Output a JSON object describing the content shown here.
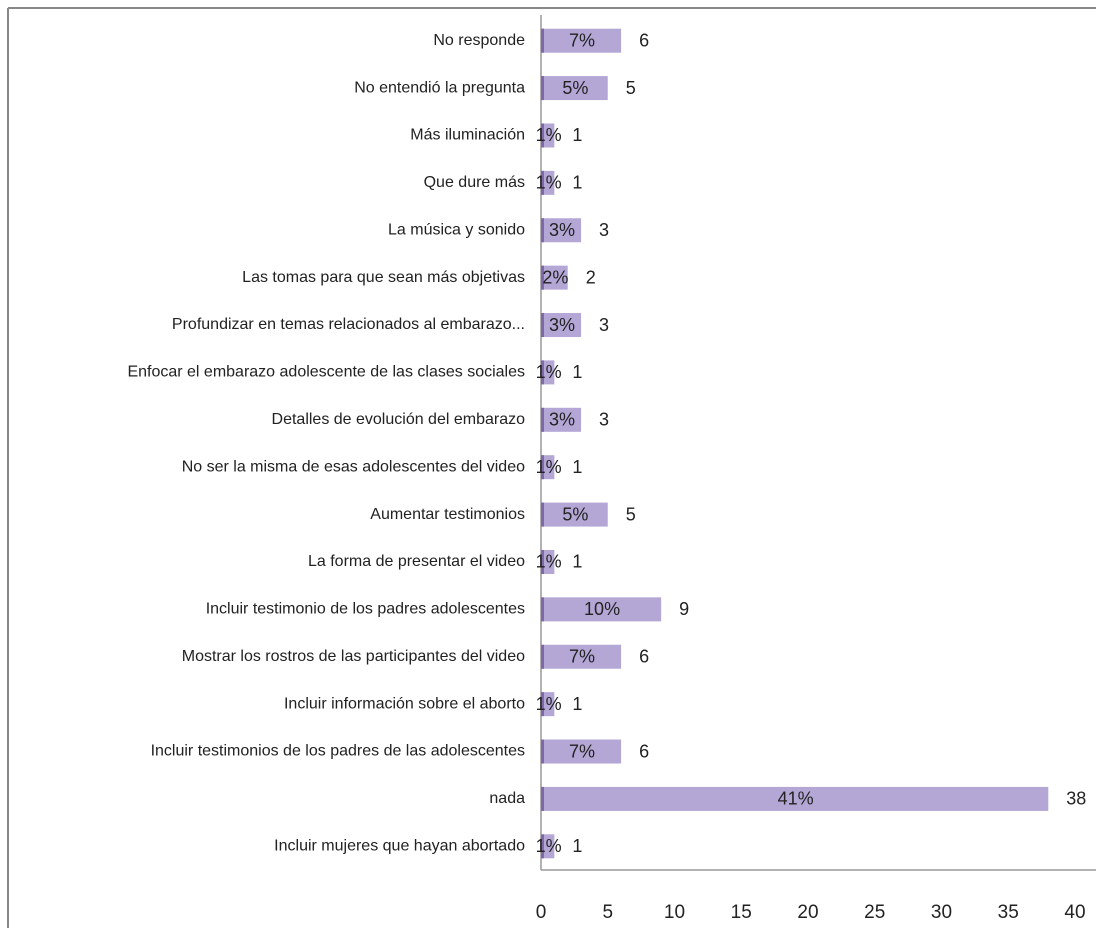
{
  "chart_data": {
    "type": "bar",
    "orientation": "horizontal",
    "categories": [
      "No responde",
      "No entendió la pregunta",
      "Más iluminación",
      "Que dure más",
      "La música y sonido",
      "Las tomas para que sean más objetivas",
      "Profundizar en temas relacionados al embarazo...",
      "Enfocar el embarazo adolescente de las clases sociales",
      "Detalles de evolución del embarazo",
      "No ser la misma  de esas adolescentes del video",
      "Aumentar testimonios",
      "La forma de presentar el video",
      "Incluir testimonio de los padres adolescentes",
      "Mostrar los rostros de las participantes del video",
      "Incluir información sobre el aborto",
      "Incluir testimonios de los padres  de las adolescentes",
      "nada",
      "Incluir mujeres que hayan abortado"
    ],
    "values": [
      6,
      5,
      1,
      1,
      3,
      2,
      3,
      1,
      3,
      1,
      5,
      1,
      9,
      6,
      1,
      6,
      38,
      1
    ],
    "percent_labels": [
      "7%",
      "5%",
      "1%",
      "1%",
      "3%",
      "2%",
      "3%",
      "1%",
      "3%",
      "1%",
      "5%",
      "1%",
      "10%",
      "7%",
      "1%",
      "7%",
      "41%",
      "1%"
    ],
    "color": "#b4a7d6",
    "xlim": [
      0,
      40
    ],
    "xticks": [
      0,
      5,
      10,
      15,
      20,
      25,
      30,
      35,
      40
    ],
    "grid": false
  }
}
